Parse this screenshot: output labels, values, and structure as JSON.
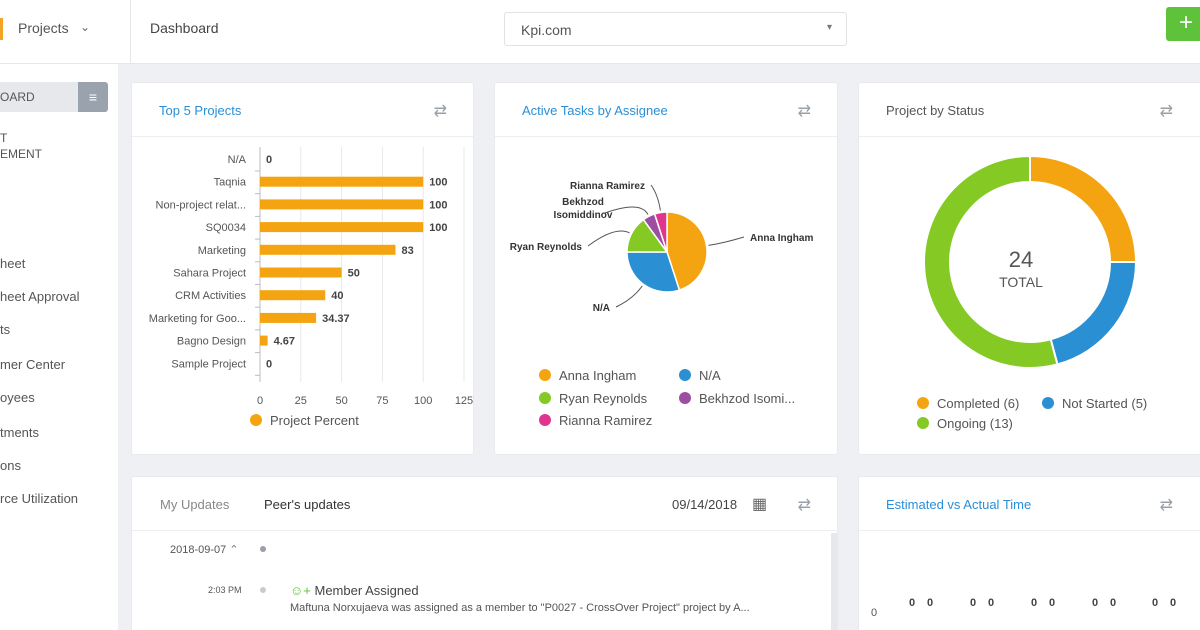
{
  "topbar": {
    "project_selector": "Projects",
    "breadcrumb": "Dashboard",
    "site_select": "Kpi.com",
    "add_label": "+"
  },
  "sidebar": {
    "board_label": "OARD",
    "section_label_line1": "T",
    "section_label_line2": "EMENT",
    "items": [
      "heet",
      "heet Approval",
      "ts",
      "mer Center",
      "oyees",
      "tments",
      "ons",
      "rce Utilization"
    ]
  },
  "cards": {
    "top5": {
      "title": "Top 5 Projects",
      "legend": "Project Percent"
    },
    "active_tasks": {
      "title": "Active Tasks by Assignee"
    },
    "status": {
      "title": "Project by Status",
      "total_value": "24",
      "total_label": "TOTAL"
    },
    "updates": {
      "tab_my": "My Updates",
      "tab_peer": "Peer's updates",
      "date": "09/14/2018",
      "group_date": "2018-09-07",
      "entry_time": "2:03 PM",
      "entry_title": "Member Assigned",
      "entry_text": "Maftuna Norxujaeva was assigned as a member to \"P0027 - CrossOver Project\" project by A..."
    },
    "estimated": {
      "title": "Estimated vs Actual Time",
      "y_zero": "0",
      "values": [
        "0",
        "0",
        "0",
        "0",
        "0",
        "0",
        "0",
        "0",
        "0",
        "0"
      ]
    }
  },
  "chart_data": [
    {
      "type": "bar",
      "orientation": "horizontal",
      "title": "Top 5 Projects",
      "categories": [
        "N/A",
        "Taqnia",
        "Non-project relat...",
        "SQ0034",
        "Marketing",
        "Sahara Project",
        "CRM Activities",
        "Marketing for Goo...",
        "Bagno Design",
        "Sample Project"
      ],
      "values": [
        0,
        100,
        100,
        100,
        83,
        50,
        40,
        34.37,
        4.67,
        0
      ],
      "value_labels": [
        "0",
        "100",
        "100",
        "100",
        "83",
        "50",
        "40",
        "34.37",
        "4.67",
        "0"
      ],
      "xticks": [
        "0",
        "25",
        "50",
        "75",
        "100",
        "125"
      ],
      "xlim": [
        0,
        125
      ],
      "series": [
        {
          "name": "Project Percent",
          "color": "#f4a410"
        }
      ]
    },
    {
      "type": "pie",
      "title": "Active Tasks by Assignee",
      "slices": [
        {
          "label": "Anna Ingham",
          "value": 45,
          "color": "#f4a410"
        },
        {
          "label": "N/A",
          "value": 30,
          "color": "#2b8fd3"
        },
        {
          "label": "Ryan Reynolds",
          "value": 15,
          "color": "#84c924"
        },
        {
          "label": "Bekhzod Isomiddinov",
          "value": 5,
          "color": "#9c4fa0"
        },
        {
          "label": "Rianna Ramirez",
          "value": 5,
          "color": "#e0358f"
        }
      ],
      "legend": [
        "Anna Ingham",
        "N/A",
        "Ryan Reynolds",
        "Bekhzod Isomi...",
        "Rianna Ramirez"
      ]
    },
    {
      "type": "pie",
      "subtype": "donut",
      "title": "Project by Status",
      "slices": [
        {
          "label": "Completed (6)",
          "value": 6,
          "color": "#f4a410"
        },
        {
          "label": "Not Started (5)",
          "value": 5,
          "color": "#2b8fd3"
        },
        {
          "label": "Ongoing (13)",
          "value": 13,
          "color": "#84c924"
        }
      ]
    }
  ]
}
